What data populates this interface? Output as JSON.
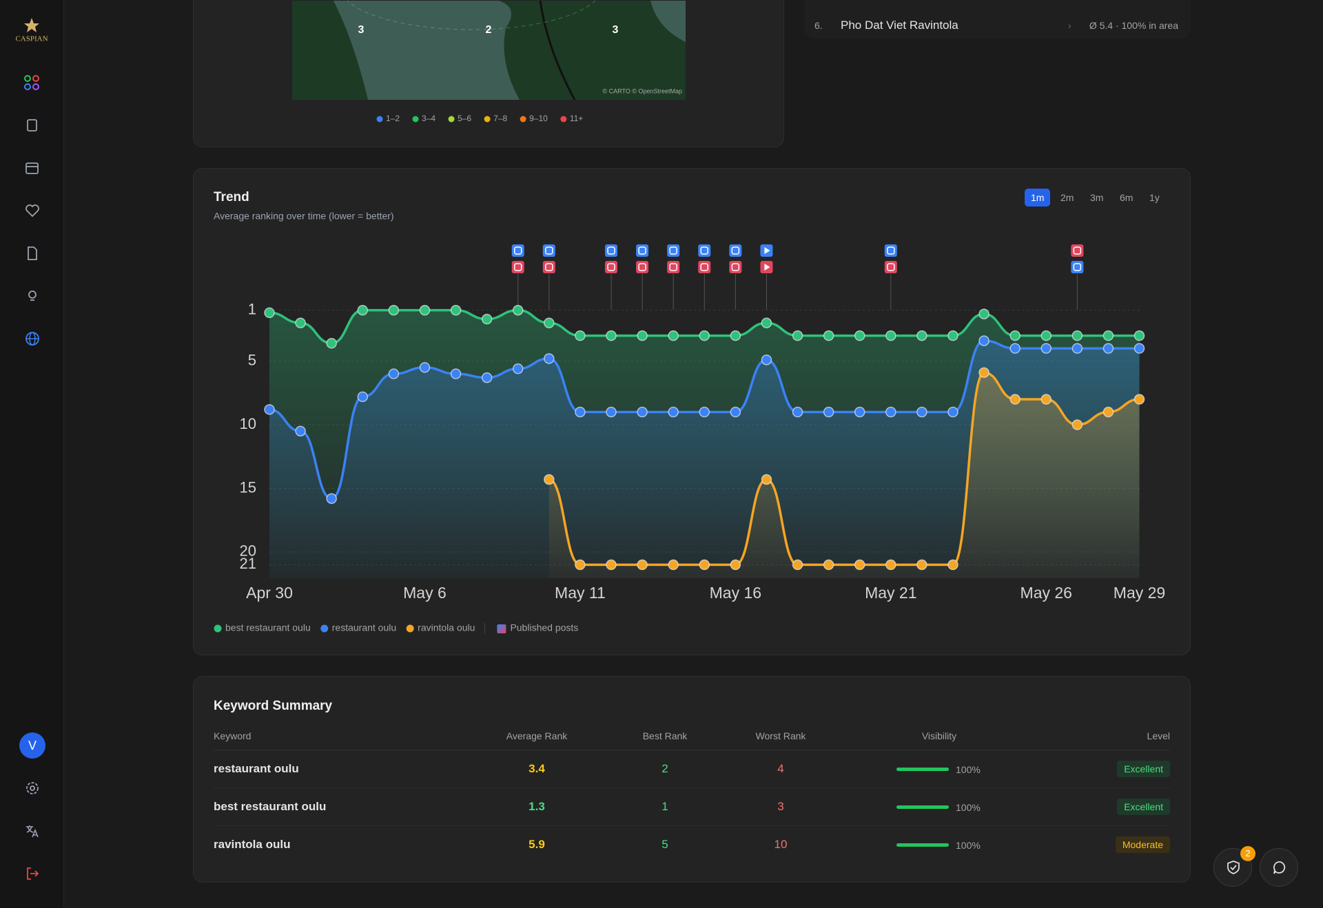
{
  "sidebar": {
    "logo": "CASPIAN",
    "avatar": "V"
  },
  "map": {
    "labels": [
      "3",
      "2",
      "3"
    ],
    "attribution": "© CARTO © OpenStreetMap",
    "legend": [
      {
        "label": "1–2",
        "color": "#3b82f6"
      },
      {
        "label": "3–4",
        "color": "#22c55e"
      },
      {
        "label": "5–6",
        "color": "#a3d93b"
      },
      {
        "label": "7–8",
        "color": "#eab308"
      },
      {
        "label": "9–10",
        "color": "#f97316"
      },
      {
        "label": "11+",
        "color": "#ef4444"
      }
    ]
  },
  "competitor": {
    "rank": "6.",
    "name": "Pho Dat Viet Ravintola",
    "stats": "Ø 5.4 · 100% in area"
  },
  "ranges": [
    "1m",
    "2m",
    "3m",
    "6m",
    "1y"
  ],
  "chart_data": {
    "type": "line",
    "title": "Trend",
    "subtitle": "Average ranking over time (lower = better)",
    "categories": [
      "Apr 30",
      null,
      null,
      null,
      null,
      "May 6",
      null,
      null,
      null,
      null,
      "May 11",
      null,
      null,
      null,
      null,
      "May 16",
      null,
      null,
      null,
      null,
      "May 21",
      null,
      null,
      null,
      null,
      "May 26",
      null,
      null,
      "May 29"
    ],
    "ylim": [
      1,
      21
    ],
    "yticks": [
      1,
      5,
      10,
      15,
      20,
      21
    ],
    "y_inverted": true,
    "grid": true,
    "series": [
      {
        "name": "best restaurant oulu",
        "color": "#2fc27a",
        "values": [
          1.2,
          2,
          3.6,
          1,
          1,
          1,
          1,
          1.7,
          1,
          2,
          3,
          3,
          3,
          3,
          3,
          3,
          2,
          3,
          3,
          3,
          3,
          3,
          3,
          1.3,
          3,
          3,
          3,
          3,
          3
        ]
      },
      {
        "name": "restaurant oulu",
        "color": "#3b82f6",
        "values": [
          8.8,
          10.5,
          15.8,
          7.8,
          6,
          5.5,
          6,
          6.3,
          5.6,
          4.8,
          9,
          9,
          9,
          9,
          9,
          9,
          4.9,
          9,
          9,
          9,
          9,
          9,
          9,
          3.4,
          4,
          4,
          4,
          4,
          4
        ]
      },
      {
        "name": "ravintola oulu",
        "color": "#f5a524",
        "values": [
          null,
          null,
          null,
          null,
          null,
          null,
          null,
          null,
          null,
          14.3,
          21,
          21,
          21,
          21,
          21,
          21,
          14.3,
          21,
          21,
          21,
          21,
          21,
          21,
          5.9,
          8,
          8,
          10,
          9,
          8
        ]
      }
    ],
    "posts_label": "Published posts"
  },
  "keyword_summary": {
    "title": "Keyword Summary",
    "columns": [
      "Keyword",
      "Average Rank",
      "Best Rank",
      "Worst Rank",
      "Visibility",
      "Level"
    ],
    "rows": [
      {
        "keyword": "restaurant oulu",
        "average": 3.4,
        "best": 2,
        "worst": 4,
        "visibility": 100,
        "visibility_label": "100%",
        "level": "Excellent"
      },
      {
        "keyword": "best restaurant oulu",
        "average": 1.3,
        "best": 1,
        "worst": 3,
        "visibility": 100,
        "visibility_label": "100%",
        "level": "Excellent"
      },
      {
        "keyword": "ravintola oulu",
        "average": 5.9,
        "best": 5,
        "worst": 10,
        "visibility": 100,
        "visibility_label": "100%",
        "level": "Moderate"
      }
    ]
  },
  "notifications": {
    "count": 2
  }
}
